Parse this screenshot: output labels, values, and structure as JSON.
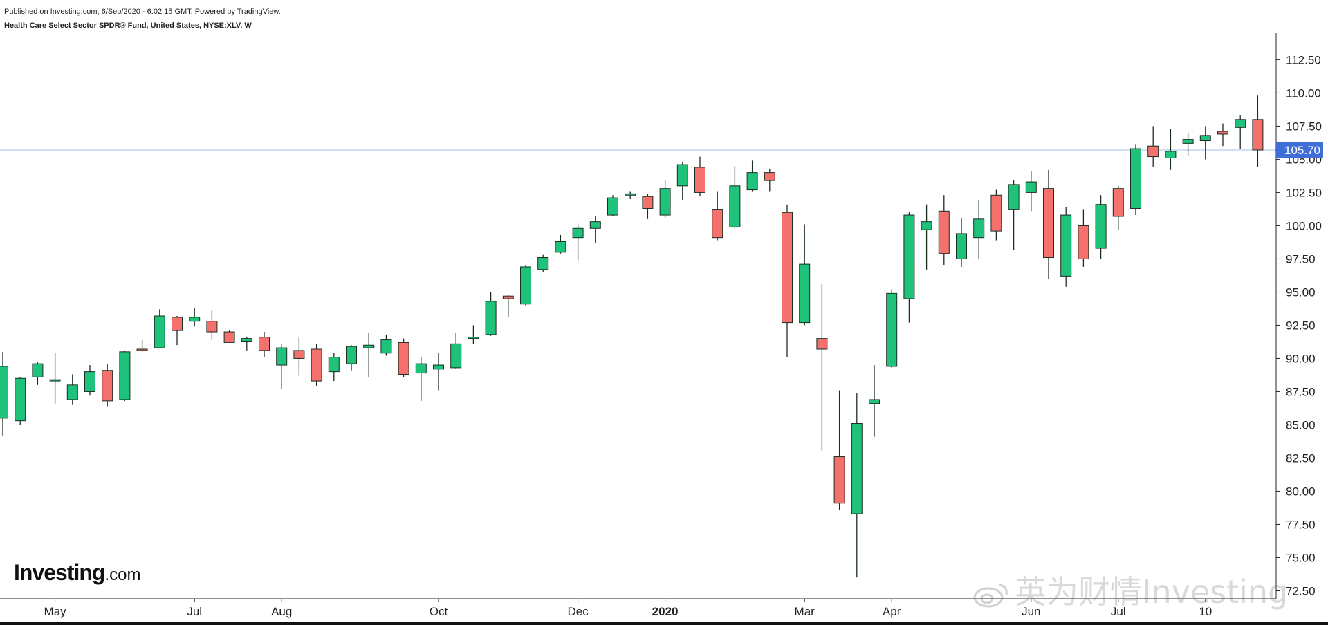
{
  "header": {
    "published": "Published on Investing.com, 6/Sep/2020 - 6:02:15 GMT, Powered by TradingView.",
    "symbol": "Health Care Select Sector SPDR® Fund, United States, NYSE:XLV, W"
  },
  "logo": {
    "brand": "Investing",
    "domain": ".com"
  },
  "watermark": {
    "text": "英为财情Investing"
  },
  "colors": {
    "up": "#1fc27a",
    "down": "#f4716e",
    "wick": "#1a2e22",
    "current_line": "#b8cdf0",
    "price_tag": "#3f6fd6",
    "axis": "#222222"
  },
  "chart_data": {
    "type": "candlestick",
    "title": "Health Care Select Sector SPDR® Fund, United States, NYSE:XLV, W",
    "xlabel": "",
    "ylabel": "",
    "ylim": [
      71.9,
      114.5
    ],
    "y_ticks": [
      "72.50",
      "75.00",
      "77.50",
      "80.00",
      "82.50",
      "85.00",
      "87.50",
      "90.00",
      "92.50",
      "95.00",
      "97.50",
      "100.00",
      "102.50",
      "105.00",
      "107.50",
      "110.00",
      "112.50"
    ],
    "current_price": 105.7,
    "current_price_label": "105.70",
    "x_tick_labels": [
      {
        "label": "May",
        "candle_index": 3
      },
      {
        "label": "Jul",
        "candle_index": 11
      },
      {
        "label": "Aug",
        "candle_index": 16
      },
      {
        "label": "Oct",
        "candle_index": 25
      },
      {
        "label": "Dec",
        "candle_index": 33
      },
      {
        "label": "2020",
        "candle_index": 38
      },
      {
        "label": "Mar",
        "candle_index": 46
      },
      {
        "label": "Apr",
        "candle_index": 51
      },
      {
        "label": "Jun",
        "candle_index": 59
      },
      {
        "label": "Jul",
        "candle_index": 64
      },
      {
        "label": "10",
        "candle_index": 69
      }
    ],
    "candles": [
      {
        "o": 85.5,
        "h": 90.5,
        "l": 84.2,
        "c": 89.4
      },
      {
        "o": 85.3,
        "h": 88.6,
        "l": 85.0,
        "c": 88.5
      },
      {
        "o": 88.6,
        "h": 89.7,
        "l": 88.0,
        "c": 89.6
      },
      {
        "o": 88.3,
        "h": 90.4,
        "l": 86.6,
        "c": 88.4
      },
      {
        "o": 86.9,
        "h": 88.8,
        "l": 86.5,
        "c": 88.0
      },
      {
        "o": 87.5,
        "h": 89.5,
        "l": 87.2,
        "c": 89.0
      },
      {
        "o": 89.1,
        "h": 89.6,
        "l": 86.4,
        "c": 86.8
      },
      {
        "o": 86.9,
        "h": 90.6,
        "l": 86.8,
        "c": 90.5
      },
      {
        "o": 90.7,
        "h": 91.4,
        "l": 90.5,
        "c": 90.6
      },
      {
        "o": 90.8,
        "h": 93.7,
        "l": 90.8,
        "c": 93.2
      },
      {
        "o": 93.1,
        "h": 93.2,
        "l": 91.0,
        "c": 92.1
      },
      {
        "o": 92.8,
        "h": 93.8,
        "l": 92.4,
        "c": 93.1
      },
      {
        "o": 92.8,
        "h": 93.6,
        "l": 91.4,
        "c": 92.0
      },
      {
        "o": 92.0,
        "h": 92.1,
        "l": 91.2,
        "c": 91.2
      },
      {
        "o": 91.3,
        "h": 91.6,
        "l": 90.6,
        "c": 91.5
      },
      {
        "o": 91.6,
        "h": 92.0,
        "l": 90.1,
        "c": 90.6
      },
      {
        "o": 89.5,
        "h": 91.1,
        "l": 87.7,
        "c": 90.8
      },
      {
        "o": 90.6,
        "h": 91.6,
        "l": 88.7,
        "c": 90.0
      },
      {
        "o": 90.7,
        "h": 91.1,
        "l": 87.9,
        "c": 88.3
      },
      {
        "o": 89.0,
        "h": 90.4,
        "l": 88.3,
        "c": 90.1
      },
      {
        "o": 89.6,
        "h": 91.0,
        "l": 89.1,
        "c": 90.9
      },
      {
        "o": 90.8,
        "h": 91.9,
        "l": 88.6,
        "c": 91.0
      },
      {
        "o": 90.4,
        "h": 91.8,
        "l": 90.2,
        "c": 91.4
      },
      {
        "o": 91.2,
        "h": 91.5,
        "l": 88.6,
        "c": 88.8
      },
      {
        "o": 88.9,
        "h": 90.1,
        "l": 86.8,
        "c": 89.6
      },
      {
        "o": 89.2,
        "h": 90.4,
        "l": 87.6,
        "c": 89.5
      },
      {
        "o": 89.3,
        "h": 91.9,
        "l": 89.2,
        "c": 91.1
      },
      {
        "o": 91.5,
        "h": 92.5,
        "l": 91.1,
        "c": 91.6
      },
      {
        "o": 91.8,
        "h": 95.0,
        "l": 91.7,
        "c": 94.3
      },
      {
        "o": 94.7,
        "h": 94.8,
        "l": 93.1,
        "c": 94.5
      },
      {
        "o": 94.1,
        "h": 97.0,
        "l": 94.0,
        "c": 96.9
      },
      {
        "o": 96.7,
        "h": 97.8,
        "l": 96.5,
        "c": 97.6
      },
      {
        "o": 98.0,
        "h": 99.3,
        "l": 97.9,
        "c": 98.8
      },
      {
        "o": 99.1,
        "h": 100.1,
        "l": 97.4,
        "c": 99.8
      },
      {
        "o": 99.8,
        "h": 100.7,
        "l": 98.7,
        "c": 100.3
      },
      {
        "o": 100.8,
        "h": 102.3,
        "l": 100.7,
        "c": 102.1
      },
      {
        "o": 102.3,
        "h": 102.6,
        "l": 102.0,
        "c": 102.4
      },
      {
        "o": 102.2,
        "h": 102.4,
        "l": 100.5,
        "c": 101.3
      },
      {
        "o": 100.8,
        "h": 103.4,
        "l": 100.6,
        "c": 102.8
      },
      {
        "o": 103.0,
        "h": 104.8,
        "l": 101.9,
        "c": 104.6
      },
      {
        "o": 104.4,
        "h": 105.2,
        "l": 102.2,
        "c": 102.5
      },
      {
        "o": 101.2,
        "h": 102.6,
        "l": 98.9,
        "c": 99.1
      },
      {
        "o": 99.9,
        "h": 104.5,
        "l": 99.8,
        "c": 103.0
      },
      {
        "o": 102.7,
        "h": 104.9,
        "l": 102.6,
        "c": 104.0
      },
      {
        "o": 104.0,
        "h": 104.3,
        "l": 102.6,
        "c": 103.4
      },
      {
        "o": 101.0,
        "h": 101.6,
        "l": 90.1,
        "c": 92.7
      },
      {
        "o": 92.7,
        "h": 100.1,
        "l": 92.5,
        "c": 97.1
      },
      {
        "o": 91.5,
        "h": 95.6,
        "l": 83.0,
        "c": 90.7
      },
      {
        "o": 82.6,
        "h": 87.6,
        "l": 78.6,
        "c": 79.1
      },
      {
        "o": 78.3,
        "h": 87.4,
        "l": 73.5,
        "c": 85.1
      },
      {
        "o": 86.6,
        "h": 89.5,
        "l": 84.1,
        "c": 86.9
      },
      {
        "o": 89.4,
        "h": 95.2,
        "l": 89.3,
        "c": 94.9
      },
      {
        "o": 94.5,
        "h": 101.0,
        "l": 92.7,
        "c": 100.8
      },
      {
        "o": 99.7,
        "h": 101.6,
        "l": 96.7,
        "c": 100.3
      },
      {
        "o": 101.1,
        "h": 102.3,
        "l": 97.0,
        "c": 97.9
      },
      {
        "o": 97.5,
        "h": 100.6,
        "l": 96.9,
        "c": 99.4
      },
      {
        "o": 99.1,
        "h": 101.9,
        "l": 97.5,
        "c": 100.5
      },
      {
        "o": 102.3,
        "h": 102.7,
        "l": 98.9,
        "c": 99.6
      },
      {
        "o": 101.2,
        "h": 103.4,
        "l": 98.2,
        "c": 103.1
      },
      {
        "o": 102.5,
        "h": 104.1,
        "l": 101.1,
        "c": 103.3
      },
      {
        "o": 102.8,
        "h": 104.2,
        "l": 96.0,
        "c": 97.6
      },
      {
        "o": 96.2,
        "h": 101.4,
        "l": 95.4,
        "c": 100.8
      },
      {
        "o": 100.0,
        "h": 101.2,
        "l": 96.9,
        "c": 97.5
      },
      {
        "o": 98.3,
        "h": 102.3,
        "l": 97.5,
        "c": 101.6
      },
      {
        "o": 102.8,
        "h": 103.0,
        "l": 99.7,
        "c": 100.7
      },
      {
        "o": 101.3,
        "h": 106.1,
        "l": 100.8,
        "c": 105.8
      },
      {
        "o": 106.0,
        "h": 107.5,
        "l": 104.4,
        "c": 105.2
      },
      {
        "o": 105.1,
        "h": 107.3,
        "l": 104.2,
        "c": 105.6
      },
      {
        "o": 106.2,
        "h": 107.0,
        "l": 105.3,
        "c": 106.5
      },
      {
        "o": 106.4,
        "h": 107.5,
        "l": 105.0,
        "c": 106.8
      },
      {
        "o": 107.1,
        "h": 107.7,
        "l": 106.0,
        "c": 106.9
      },
      {
        "o": 107.4,
        "h": 108.3,
        "l": 105.8,
        "c": 108.0
      },
      {
        "o": 108.0,
        "h": 109.8,
        "l": 104.4,
        "c": 105.7
      }
    ]
  }
}
